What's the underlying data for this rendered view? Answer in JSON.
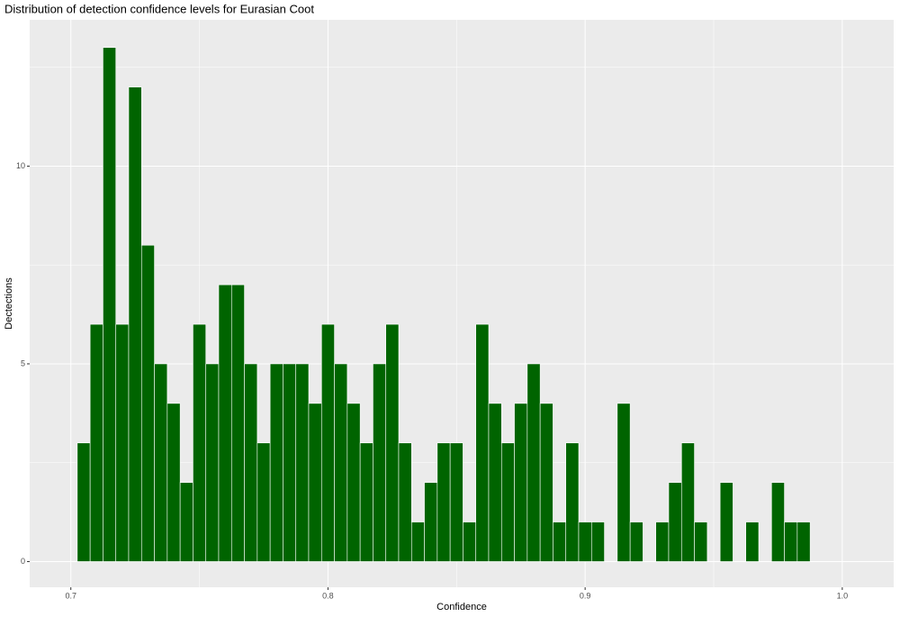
{
  "chart_data": {
    "type": "histogram",
    "title": "Distribution of detection confidence levels for Eurasian Coot",
    "x_label": "Confidence",
    "y_label": "Dectections",
    "bins": [
      0.7025,
      0.7075,
      0.7125,
      0.7175,
      0.7225,
      0.7275,
      0.7325,
      0.7375,
      0.7425,
      0.7475,
      0.7525,
      0.7575,
      0.7625,
      0.7675,
      0.7725,
      0.7775,
      0.7825,
      0.7875,
      0.7925,
      0.7975,
      0.8025,
      0.8075,
      0.8125,
      0.8175,
      0.8225,
      0.8275,
      0.8325,
      0.8375,
      0.8425,
      0.8475,
      0.8525,
      0.8575,
      0.8625,
      0.8675,
      0.8725,
      0.8775,
      0.8825,
      0.8875,
      0.8925,
      0.8975,
      0.9025,
      0.9075,
      0.9125,
      0.9175,
      0.9225,
      0.9275,
      0.9325,
      0.9375,
      0.9425,
      0.9475,
      0.9525,
      0.9575,
      0.9625,
      0.9675,
      0.9725,
      0.9775,
      0.9825,
      0.9875
    ],
    "values": [
      3,
      6,
      13,
      6,
      12,
      8,
      5,
      4,
      2,
      6,
      5,
      7,
      7,
      5,
      3,
      5,
      5,
      5,
      4,
      6,
      5,
      4,
      3,
      5,
      6,
      3,
      1,
      2,
      3,
      3,
      1,
      6,
      4,
      3,
      4,
      5,
      4,
      1,
      3,
      1,
      1,
      0,
      4,
      1,
      0,
      1,
      2,
      3,
      1,
      0,
      2,
      0,
      1,
      0,
      2,
      1,
      1
    ],
    "color": "#006400",
    "xlim": [
      0.684,
      1.02
    ],
    "xticks": [
      0.7,
      0.8,
      0.9,
      {
        "value": 1,
        "label": "1.0"
      }
    ],
    "ylim": [
      -0.65,
      13.7
    ],
    "yticks": [
      0,
      5,
      10
    ],
    "grid": true
  }
}
